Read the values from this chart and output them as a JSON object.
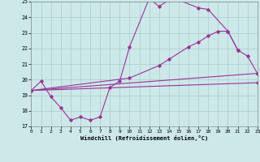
{
  "background_color": "#cce8e8",
  "line_color": "#993399",
  "grid_color": "#aacccc",
  "xlabel": "Windchill (Refroidissement éolien,°C)",
  "xlim": [
    0,
    23
  ],
  "ylim": [
    17,
    25
  ],
  "xticks": [
    0,
    1,
    2,
    3,
    4,
    5,
    6,
    7,
    8,
    9,
    10,
    11,
    12,
    13,
    14,
    15,
    16,
    17,
    18,
    19,
    20,
    21,
    22,
    23
  ],
  "yticks": [
    17,
    18,
    19,
    20,
    21,
    22,
    23,
    24,
    25
  ],
  "line1_x": [
    0,
    1,
    2,
    3,
    4,
    5,
    6,
    7,
    8,
    9,
    10,
    12,
    13,
    14,
    15,
    17,
    18,
    20,
    21
  ],
  "line1_y": [
    19.3,
    19.9,
    18.9,
    18.2,
    17.4,
    17.6,
    17.4,
    17.6,
    19.5,
    19.9,
    22.1,
    25.2,
    24.7,
    25.1,
    25.1,
    24.6,
    24.5,
    23.1,
    21.9
  ],
  "line2_x": [
    0,
    10,
    13,
    14,
    16,
    17,
    18,
    19,
    20,
    21,
    22,
    23
  ],
  "line2_y": [
    19.3,
    20.1,
    20.9,
    21.3,
    22.1,
    22.4,
    22.8,
    23.1,
    23.1,
    21.9,
    21.5,
    20.4
  ],
  "line3_x": [
    0,
    23
  ],
  "line3_y": [
    19.3,
    20.4
  ],
  "line4_x": [
    0,
    23
  ],
  "line4_y": [
    19.3,
    19.8
  ]
}
